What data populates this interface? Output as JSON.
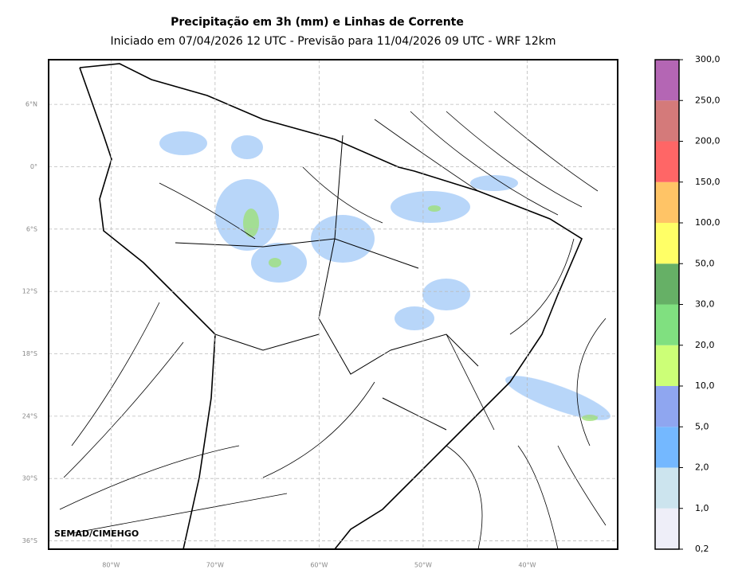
{
  "map": {
    "title": "Precipitação em 3h (mm) e Linhas de Corrente",
    "subtitle": "Iniciado em 07/04/2026 12 UTC - Previsão para 11/04/2026 09 UTC - WRF 12km",
    "credit": "SEMAD/CIMEHGO",
    "xlim": [
      -86,
      -31.3
    ],
    "ylim": [
      -36.8,
      10.3
    ],
    "xticks": [
      {
        "value": -80,
        "label": "80°W"
      },
      {
        "value": -70,
        "label": "70°W"
      },
      {
        "value": -60,
        "label": "60°W"
      },
      {
        "value": -50,
        "label": "50°W"
      },
      {
        "value": -40,
        "label": "40°W"
      }
    ],
    "yticks": [
      {
        "value": 6,
        "label": "6°N"
      },
      {
        "value": 0,
        "label": "0°"
      },
      {
        "value": -6,
        "label": "6°S"
      },
      {
        "value": -12,
        "label": "12°S"
      },
      {
        "value": -18,
        "label": "18°S"
      },
      {
        "value": -24,
        "label": "24°S"
      },
      {
        "value": -30,
        "label": "30°S"
      },
      {
        "value": -36,
        "label": "36°S"
      }
    ],
    "grid": true,
    "colorbar": {
      "levels": [
        {
          "value": 0.2,
          "label": "0,2"
        },
        {
          "value": 1,
          "label": "1,0"
        },
        {
          "value": 2,
          "label": "2,0"
        },
        {
          "value": 5,
          "label": "5,0"
        },
        {
          "value": 10,
          "label": "10,0"
        },
        {
          "value": 20,
          "label": "20,0"
        },
        {
          "value": 30,
          "label": "30,0"
        },
        {
          "value": 50,
          "label": "50,0"
        },
        {
          "value": 100,
          "label": "100,0"
        },
        {
          "value": 150,
          "label": "150,0"
        },
        {
          "value": 200,
          "label": "200,0"
        },
        {
          "value": 250,
          "label": "250,0"
        },
        {
          "value": 300,
          "label": "300,0"
        }
      ],
      "colors": [
        "#eeeef8",
        "#cce4ee",
        "#74b8ff",
        "#8fa6f0",
        "#ccff77",
        "#80e080",
        "#66b066",
        "#ffff66",
        "#ffc466",
        "#ff6666",
        "#d47a7a",
        "#b466b4"
      ]
    }
  }
}
